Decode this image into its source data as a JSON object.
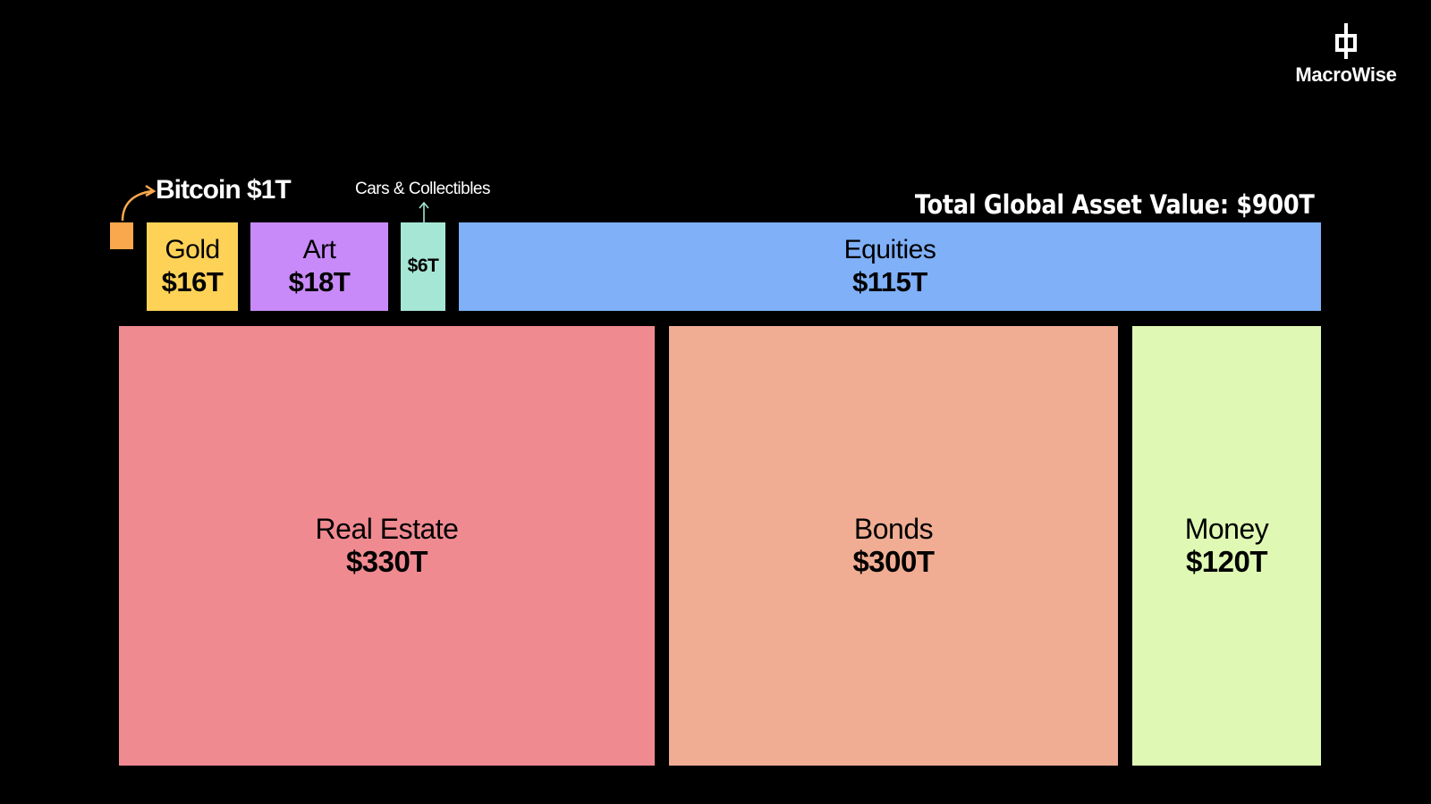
{
  "brand": {
    "name": "MacroWise"
  },
  "chart_data": {
    "type": "treemap",
    "title": "Total Global Asset Value: $900T",
    "unit": "$T",
    "items": [
      {
        "name": "Real Estate",
        "value": 330,
        "label": "$330T",
        "color": "#f08a91"
      },
      {
        "name": "Bonds",
        "value": 300,
        "label": "$300T",
        "color": "#f1ad94"
      },
      {
        "name": "Money",
        "value": 120,
        "label": "$120T",
        "color": "#dff9b4"
      },
      {
        "name": "Equities",
        "value": 115,
        "label": "$115T",
        "color": "#7fb0f8"
      },
      {
        "name": "Art",
        "value": 18,
        "label": "$18T",
        "color": "#c88af8"
      },
      {
        "name": "Gold",
        "value": 16,
        "label": "$16T",
        "color": "#fed257"
      },
      {
        "name": "Cars & Collectibles",
        "value": 6,
        "label": "$6T",
        "color": "#a6e6d4"
      },
      {
        "name": "Bitcoin",
        "value": 1,
        "label": "Bitcoin $1T",
        "color": "#f9a84e"
      }
    ]
  }
}
